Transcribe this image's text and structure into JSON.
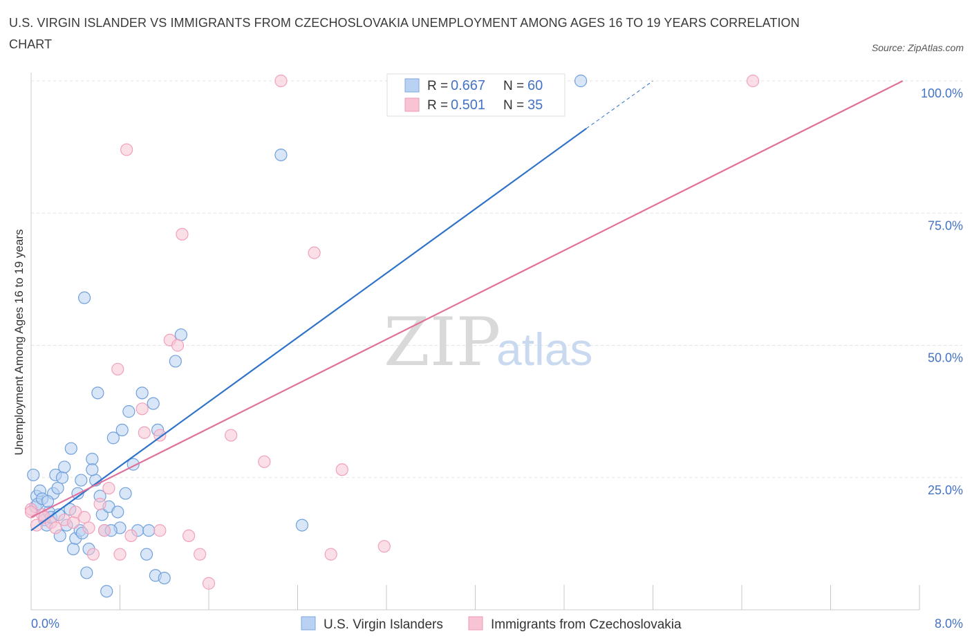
{
  "title": "U.S. VIRGIN ISLANDER VS IMMIGRANTS FROM CZECHOSLOVAKIA UNEMPLOYMENT AMONG AGES 16 TO 19 YEARS CORRELATION CHART",
  "source": "Source: ZipAtlas.com",
  "watermark": {
    "zip": "ZIP",
    "atlas": "atlas"
  },
  "chart_data": {
    "type": "scatter",
    "title": "U.S. VIRGIN ISLANDER VS IMMIGRANTS FROM CZECHOSLOVAKIA UNEMPLOYMENT AMONG AGES 16 TO 19 YEARS CORRELATION CHART",
    "xlabel": "",
    "ylabel": "Unemployment Among Ages 16 to 19 years",
    "xlim": [
      0,
      8
    ],
    "ylim": [
      0,
      100
    ],
    "x_tick_labels": {
      "min": "0.0%",
      "max": "8.0%"
    },
    "y_ticks": [
      {
        "value": 25,
        "label": "25.0%"
      },
      {
        "value": 50,
        "label": "50.0%"
      },
      {
        "value": 75,
        "label": "75.0%"
      },
      {
        "value": 100,
        "label": "100.0%"
      }
    ],
    "legend": {
      "position": "top-center",
      "r_label": "R =",
      "n_label": "N =",
      "entries": [
        {
          "r": "0.667",
          "n": "60"
        },
        {
          "r": "0.501",
          "n": "35"
        }
      ]
    },
    "series": [
      {
        "name": "U.S. Virgin Islanders",
        "color": "#6fa0dc",
        "line_color": "#2e72c9",
        "trend": {
          "x0": 0.0,
          "y0": 15.0,
          "x1": 5.0,
          "y1": 91.0,
          "dash_to_x": 5.6,
          "dash_to_y": 100.0
        },
        "points": [
          [
            0.04,
            19.5
          ],
          [
            0.05,
            21.5
          ],
          [
            0.06,
            20.0
          ],
          [
            0.08,
            22.5
          ],
          [
            0.1,
            21.0
          ],
          [
            0.12,
            17.0
          ],
          [
            0.14,
            16.0
          ],
          [
            0.16,
            18.5
          ],
          [
            0.18,
            17.5
          ],
          [
            0.2,
            22.0
          ],
          [
            0.22,
            25.5
          ],
          [
            0.24,
            23.0
          ],
          [
            0.26,
            14.0
          ],
          [
            0.28,
            25.0
          ],
          [
            0.3,
            27.0
          ],
          [
            0.32,
            16.0
          ],
          [
            0.35,
            19.0
          ],
          [
            0.38,
            11.5
          ],
          [
            0.4,
            13.5
          ],
          [
            0.42,
            22.0
          ],
          [
            0.44,
            15.0
          ],
          [
            0.46,
            14.5
          ],
          [
            0.48,
            59.0
          ],
          [
            0.5,
            7.0
          ],
          [
            0.52,
            11.5
          ],
          [
            0.55,
            28.5
          ],
          [
            0.58,
            24.5
          ],
          [
            0.6,
            41.0
          ],
          [
            0.62,
            21.5
          ],
          [
            0.64,
            18.0
          ],
          [
            0.66,
            15.0
          ],
          [
            0.68,
            3.5
          ],
          [
            0.7,
            19.5
          ],
          [
            0.74,
            32.5
          ],
          [
            0.78,
            18.5
          ],
          [
            0.8,
            15.5
          ],
          [
            0.82,
            34.0
          ],
          [
            0.85,
            22.0
          ],
          [
            0.88,
            37.5
          ],
          [
            0.92,
            27.5
          ],
          [
            0.96,
            15.0
          ],
          [
            1.0,
            41.0
          ],
          [
            1.04,
            10.5
          ],
          [
            1.06,
            15.0
          ],
          [
            1.1,
            39.0
          ],
          [
            1.12,
            6.5
          ],
          [
            1.14,
            34.0
          ],
          [
            1.2,
            6.0
          ],
          [
            1.3,
            47.0
          ],
          [
            1.35,
            52.0
          ],
          [
            0.02,
            25.5
          ],
          [
            0.15,
            20.5
          ],
          [
            0.25,
            18.0
          ],
          [
            0.36,
            30.5
          ],
          [
            0.45,
            24.5
          ],
          [
            0.55,
            26.5
          ],
          [
            2.25,
            86.0
          ],
          [
            2.44,
            16.0
          ],
          [
            4.95,
            100.0
          ],
          [
            0.72,
            15.0
          ]
        ]
      },
      {
        "name": "Immigrants from Czechoslovakia",
        "color": "#f0a0bc",
        "line_color": "#e0709a",
        "trend": {
          "x0": 0.0,
          "y0": 17.5,
          "x1": 7.85,
          "y1": 100.0
        },
        "points": [
          [
            0.0,
            19.0
          ],
          [
            0.0,
            18.5
          ],
          [
            0.05,
            16.0
          ],
          [
            0.1,
            18.0
          ],
          [
            0.12,
            17.5
          ],
          [
            0.18,
            16.5
          ],
          [
            0.22,
            15.5
          ],
          [
            0.3,
            17.0
          ],
          [
            0.38,
            16.5
          ],
          [
            0.4,
            18.5
          ],
          [
            0.48,
            17.5
          ],
          [
            0.52,
            15.5
          ],
          [
            0.56,
            10.5
          ],
          [
            0.62,
            20.0
          ],
          [
            0.66,
            15.0
          ],
          [
            0.7,
            23.0
          ],
          [
            0.78,
            45.5
          ],
          [
            0.8,
            10.5
          ],
          [
            0.86,
            87.0
          ],
          [
            0.9,
            14.0
          ],
          [
            1.0,
            38.0
          ],
          [
            1.02,
            33.5
          ],
          [
            1.16,
            33.0
          ],
          [
            1.16,
            15.0
          ],
          [
            1.25,
            51.0
          ],
          [
            1.32,
            50.0
          ],
          [
            1.36,
            71.0
          ],
          [
            1.42,
            14.0
          ],
          [
            1.52,
            10.5
          ],
          [
            1.6,
            5.0
          ],
          [
            1.8,
            33.0
          ],
          [
            2.1,
            28.0
          ],
          [
            2.25,
            100.0
          ],
          [
            2.55,
            67.5
          ],
          [
            2.7,
            10.5
          ]
        ],
        "extra_points": [
          [
            2.8,
            26.5
          ],
          [
            3.18,
            12.0
          ],
          [
            6.5,
            100.0
          ]
        ]
      }
    ]
  }
}
